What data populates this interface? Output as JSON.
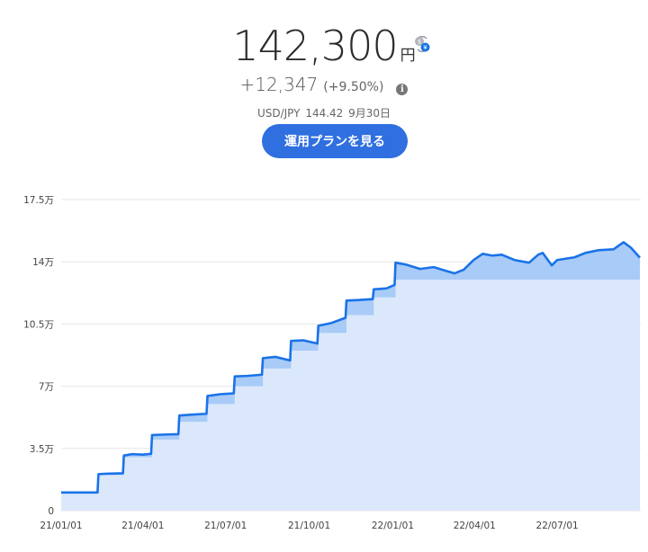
{
  "summary": {
    "value": "142,300",
    "unit": "円",
    "change": "+12,347",
    "change_percent": "(+9.50%)",
    "fx_pair": "USD/JPY",
    "fx_rate": "144.42",
    "fx_date": "9月30日",
    "plan_button_label": "運用プランを見る"
  },
  "icons": {
    "currency_toggle": "currency-exchange-icon",
    "info": "info-icon"
  },
  "colors": {
    "line": "#1a73e8",
    "gain_fill": "#a8cbf7",
    "principal_fill": "#dbe8fb",
    "button": "#2f6fe0"
  },
  "chart_data": {
    "type": "area",
    "title": "",
    "xlabel": "",
    "ylabel": "",
    "ylim": [
      0,
      175000
    ],
    "xlim": [
      "2021-01-01",
      "2022-10-01"
    ],
    "y_ticks": [
      {
        "value": 0,
        "label": "0"
      },
      {
        "value": 35000,
        "label": "3.5万"
      },
      {
        "value": 70000,
        "label": "7万"
      },
      {
        "value": 105000,
        "label": "10.5万"
      },
      {
        "value": 140000,
        "label": "14万"
      },
      {
        "value": 175000,
        "label": "17.5万"
      }
    ],
    "x_ticks": [
      {
        "date": "2021-01-01",
        "label": "21/01/01"
      },
      {
        "date": "2021-04-01",
        "label": "21/04/01"
      },
      {
        "date": "2021-07-01",
        "label": "21/07/01"
      },
      {
        "date": "2021-10-01",
        "label": "21/10/01"
      },
      {
        "date": "2022-01-01",
        "label": "22/01/01"
      },
      {
        "date": "2022-04-01",
        "label": "22/04/01"
      },
      {
        "date": "2022-07-01",
        "label": "22/07/01"
      }
    ],
    "grid": true,
    "series": [
      {
        "role": "valuation",
        "points": [
          [
            "2021-01-01",
            10200
          ],
          [
            "2021-02-10",
            10200
          ],
          [
            "2021-02-11",
            20500
          ],
          [
            "2021-02-20",
            20800
          ],
          [
            "2021-03-10",
            21000
          ],
          [
            "2021-03-11",
            31000
          ],
          [
            "2021-03-20",
            31800
          ],
          [
            "2021-04-01",
            31500
          ],
          [
            "2021-04-10",
            32000
          ],
          [
            "2021-04-11",
            42500
          ],
          [
            "2021-04-25",
            42800
          ],
          [
            "2021-05-10",
            43000
          ],
          [
            "2021-05-11",
            53500
          ],
          [
            "2021-05-25",
            54000
          ],
          [
            "2021-06-10",
            54500
          ],
          [
            "2021-06-11",
            64500
          ],
          [
            "2021-06-25",
            65500
          ],
          [
            "2021-07-10",
            66000
          ],
          [
            "2021-07-11",
            75500
          ],
          [
            "2021-07-25",
            75800
          ],
          [
            "2021-08-10",
            76500
          ],
          [
            "2021-08-11",
            85800
          ],
          [
            "2021-08-25",
            86500
          ],
          [
            "2021-09-10",
            84500
          ],
          [
            "2021-09-11",
            95500
          ],
          [
            "2021-09-25",
            95800
          ],
          [
            "2021-10-10",
            94000
          ],
          [
            "2021-10-11",
            104000
          ],
          [
            "2021-10-25",
            105500
          ],
          [
            "2021-11-10",
            108500
          ],
          [
            "2021-11-11",
            118200
          ],
          [
            "2021-11-25",
            118500
          ],
          [
            "2021-12-10",
            119000
          ],
          [
            "2021-12-11",
            124500
          ],
          [
            "2021-12-25",
            125000
          ],
          [
            "2022-01-03",
            127000
          ],
          [
            "2022-01-04",
            139500
          ],
          [
            "2022-01-15",
            138500
          ],
          [
            "2022-01-31",
            136000
          ],
          [
            "2022-02-15",
            137000
          ],
          [
            "2022-02-28",
            135000
          ],
          [
            "2022-03-10",
            133500
          ],
          [
            "2022-03-20",
            135500
          ],
          [
            "2022-03-31",
            141000
          ],
          [
            "2022-04-10",
            144500
          ],
          [
            "2022-04-20",
            143500
          ],
          [
            "2022-05-01",
            144000
          ],
          [
            "2022-05-15",
            141000
          ],
          [
            "2022-05-31",
            139500
          ],
          [
            "2022-06-10",
            144000
          ],
          [
            "2022-06-15",
            145000
          ],
          [
            "2022-06-25",
            138000
          ],
          [
            "2022-07-01",
            141000
          ],
          [
            "2022-07-20",
            142500
          ],
          [
            "2022-08-01",
            145000
          ],
          [
            "2022-08-15",
            146500
          ],
          [
            "2022-09-01",
            147000
          ],
          [
            "2022-09-12",
            151000
          ],
          [
            "2022-09-20",
            148000
          ],
          [
            "2022-09-30",
            142300
          ]
        ]
      },
      {
        "role": "principal",
        "points": [
          [
            "2021-01-01",
            10000
          ],
          [
            "2021-02-11",
            10000
          ],
          [
            "2021-02-11",
            20000
          ],
          [
            "2021-03-11",
            20000
          ],
          [
            "2021-03-11",
            30000
          ],
          [
            "2021-04-11",
            30000
          ],
          [
            "2021-04-11",
            40000
          ],
          [
            "2021-05-11",
            40000
          ],
          [
            "2021-05-11",
            50000
          ],
          [
            "2021-06-11",
            50000
          ],
          [
            "2021-06-11",
            60000
          ],
          [
            "2021-07-11",
            60000
          ],
          [
            "2021-07-11",
            70000
          ],
          [
            "2021-08-11",
            70000
          ],
          [
            "2021-08-11",
            80000
          ],
          [
            "2021-09-11",
            80000
          ],
          [
            "2021-09-11",
            90000
          ],
          [
            "2021-10-11",
            90000
          ],
          [
            "2021-10-11",
            100000
          ],
          [
            "2021-11-11",
            100000
          ],
          [
            "2021-11-11",
            110000
          ],
          [
            "2021-12-11",
            110000
          ],
          [
            "2021-12-11",
            120000
          ],
          [
            "2022-01-04",
            120000
          ],
          [
            "2022-01-04",
            129953
          ],
          [
            "2022-09-30",
            129953
          ]
        ]
      }
    ]
  }
}
